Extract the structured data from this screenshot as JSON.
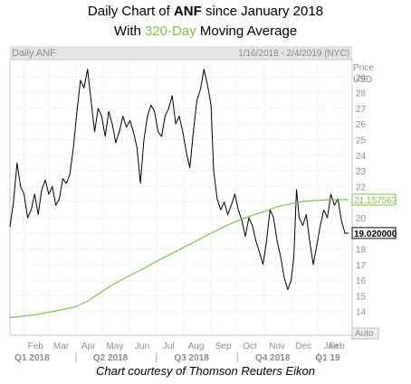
{
  "header": {
    "line1_prefix": "Daily Chart of ",
    "line1_ticker": "ANF",
    "line1_suffix": " since January 2018",
    "line2_prefix": "With ",
    "line2_accent": "320-Day",
    "line2_suffix": " Moving Average"
  },
  "panel": {
    "label": "Daily ANF",
    "date_range": "1/16/2018 - 2/4/2019 (NYC)",
    "price_label_1": "Price",
    "price_label_2": "USD",
    "auto_label": "Auto"
  },
  "footer": "Chart courtesy of Thomson Reuters Eikon",
  "colors": {
    "background": "#ffffff",
    "panel_header": "#e3e3e3",
    "grid": "#dddddd",
    "price_line": "#000000",
    "moving_average": "#7dc242",
    "accent_text": "#7dc242",
    "axis_text": "#8c8c8c"
  },
  "chart_data": {
    "type": "line",
    "title": "Daily Chart of ANF since January 2018",
    "subtitle": "With 320-Day Moving Average",
    "xlabel": "",
    "ylabel": "Price USD",
    "xlim": [
      "2018-01-16",
      "2019-02-04"
    ],
    "ylim": [
      13,
      30
    ],
    "x_ticks": [
      "Feb",
      "Mar",
      "Apr",
      "May",
      "Jun",
      "Jul",
      "Aug",
      "Sep",
      "Oct",
      "Nov",
      "Dec",
      "Jan",
      "Feb"
    ],
    "quarter_ticks": [
      "Q1 2018",
      "Q2 2018",
      "Q3 2018",
      "Q4 2018",
      "Q1 19"
    ],
    "y_ticks": [
      14,
      15,
      16,
      17,
      18,
      19,
      20,
      21,
      22,
      23,
      24,
      25,
      26,
      27,
      28,
      29
    ],
    "grid": true,
    "series": [
      {
        "name": "",
        "points": [
          [
            "2018-01-16",
            19.4
          ],
          [
            "2018-01-20",
            21.0
          ],
          [
            "2018-01-24",
            23.5
          ],
          [
            "2018-01-28",
            22.0
          ],
          [
            "2018-02-01",
            21.5
          ],
          [
            "2018-02-05",
            20.0
          ],
          [
            "2018-02-09",
            20.5
          ],
          [
            "2018-02-13",
            21.5
          ],
          [
            "2018-02-17",
            20.2
          ],
          [
            "2018-02-21",
            21.8
          ],
          [
            "2018-02-25",
            22.4
          ],
          [
            "2018-03-01",
            21.5
          ],
          [
            "2018-03-05",
            22.0
          ],
          [
            "2018-03-09",
            20.8
          ],
          [
            "2018-03-13",
            21.2
          ],
          [
            "2018-03-17",
            22.5
          ],
          [
            "2018-03-21",
            22.2
          ],
          [
            "2018-03-25",
            22.8
          ],
          [
            "2018-03-29",
            24.5
          ],
          [
            "2018-04-02",
            26.8
          ],
          [
            "2018-04-06",
            28.8
          ],
          [
            "2018-04-10",
            28.3
          ],
          [
            "2018-04-14",
            29.5
          ],
          [
            "2018-04-18",
            27.5
          ],
          [
            "2018-04-22",
            25.5
          ],
          [
            "2018-04-26",
            27.0
          ],
          [
            "2018-04-30",
            26.5
          ],
          [
            "2018-05-04",
            25.2
          ],
          [
            "2018-05-08",
            26.8
          ],
          [
            "2018-05-12",
            26.0
          ],
          [
            "2018-05-16",
            24.8
          ],
          [
            "2018-05-20",
            25.5
          ],
          [
            "2018-05-24",
            26.5
          ],
          [
            "2018-05-28",
            25.8
          ],
          [
            "2018-06-01",
            26.2
          ],
          [
            "2018-06-05",
            25.5
          ],
          [
            "2018-06-09",
            24.5
          ],
          [
            "2018-06-13",
            22.2
          ],
          [
            "2018-06-17",
            25.0
          ],
          [
            "2018-06-21",
            26.5
          ],
          [
            "2018-06-25",
            27.2
          ],
          [
            "2018-06-29",
            26.8
          ],
          [
            "2018-07-03",
            25.5
          ],
          [
            "2018-07-07",
            25.2
          ],
          [
            "2018-07-11",
            26.5
          ],
          [
            "2018-07-15",
            27.0
          ],
          [
            "2018-07-19",
            27.8
          ],
          [
            "2018-07-23",
            26.0
          ],
          [
            "2018-07-27",
            26.5
          ],
          [
            "2018-07-31",
            25.5
          ],
          [
            "2018-08-04",
            24.2
          ],
          [
            "2018-08-08",
            23.2
          ],
          [
            "2018-08-12",
            25.5
          ],
          [
            "2018-08-16",
            27.5
          ],
          [
            "2018-08-20",
            28.2
          ],
          [
            "2018-08-24",
            29.5
          ],
          [
            "2018-08-28",
            28.5
          ],
          [
            "2018-09-01",
            27.2
          ],
          [
            "2018-09-04",
            23.0
          ],
          [
            "2018-09-08",
            21.2
          ],
          [
            "2018-09-12",
            20.5
          ],
          [
            "2018-09-16",
            21.0
          ],
          [
            "2018-09-20",
            20.2
          ],
          [
            "2018-09-24",
            20.8
          ],
          [
            "2018-09-28",
            21.5
          ],
          [
            "2018-10-02",
            20.5
          ],
          [
            "2018-10-06",
            19.8
          ],
          [
            "2018-10-10",
            18.8
          ],
          [
            "2018-10-14",
            20.0
          ],
          [
            "2018-10-18",
            19.5
          ],
          [
            "2018-10-22",
            18.5
          ],
          [
            "2018-10-26",
            17.8
          ],
          [
            "2018-10-30",
            17.0
          ],
          [
            "2018-11-03",
            18.5
          ],
          [
            "2018-11-07",
            20.5
          ],
          [
            "2018-11-11",
            20.0
          ],
          [
            "2018-11-15",
            18.5
          ],
          [
            "2018-11-19",
            17.5
          ],
          [
            "2018-11-23",
            16.2
          ],
          [
            "2018-11-27",
            15.4
          ],
          [
            "2018-12-01",
            16.0
          ],
          [
            "2018-12-04",
            17.5
          ],
          [
            "2018-12-07",
            21.8
          ],
          [
            "2018-12-10",
            20.0
          ],
          [
            "2018-12-14",
            19.5
          ],
          [
            "2018-12-18",
            20.2
          ],
          [
            "2018-12-22",
            18.5
          ],
          [
            "2018-12-26",
            17.0
          ],
          [
            "2018-12-30",
            18.2
          ],
          [
            "2019-01-03",
            19.5
          ],
          [
            "2019-01-07",
            20.5
          ],
          [
            "2019-01-11",
            20.0
          ],
          [
            "2019-01-15",
            21.5
          ],
          [
            "2019-01-19",
            20.8
          ],
          [
            "2019-01-23",
            21.2
          ],
          [
            "2019-01-27",
            19.8
          ],
          [
            "2019-01-31",
            19.0
          ],
          [
            "2019-02-04",
            19.02
          ]
        ]
      },
      {
        "name": "320-Day Moving Average",
        "points": [
          [
            "2018-01-16",
            13.6
          ],
          [
            "2018-02-15",
            13.8
          ],
          [
            "2018-03-15",
            14.1
          ],
          [
            "2018-04-01",
            14.3
          ],
          [
            "2018-04-15",
            14.7
          ],
          [
            "2018-05-01",
            15.3
          ],
          [
            "2018-05-15",
            15.8
          ],
          [
            "2018-06-01",
            16.3
          ],
          [
            "2018-06-15",
            16.7
          ],
          [
            "2018-07-01",
            17.2
          ],
          [
            "2018-07-15",
            17.6
          ],
          [
            "2018-08-01",
            18.1
          ],
          [
            "2018-08-15",
            18.5
          ],
          [
            "2018-09-01",
            19.0
          ],
          [
            "2018-09-15",
            19.4
          ],
          [
            "2018-10-01",
            19.8
          ],
          [
            "2018-10-15",
            20.1
          ],
          [
            "2018-11-01",
            20.4
          ],
          [
            "2018-11-15",
            20.7
          ],
          [
            "2018-12-01",
            20.9
          ],
          [
            "2018-12-15",
            21.05
          ],
          [
            "2019-01-01",
            21.12
          ],
          [
            "2019-01-15",
            21.15
          ],
          [
            "2019-02-04",
            21.16
          ]
        ]
      }
    ],
    "labels": [
      {
        "series": "320-Day Moving Average",
        "text": "21.157563",
        "value": 21.157563
      },
      {
        "series": "",
        "text": "19.020000",
        "value": 19.02
      }
    ]
  }
}
